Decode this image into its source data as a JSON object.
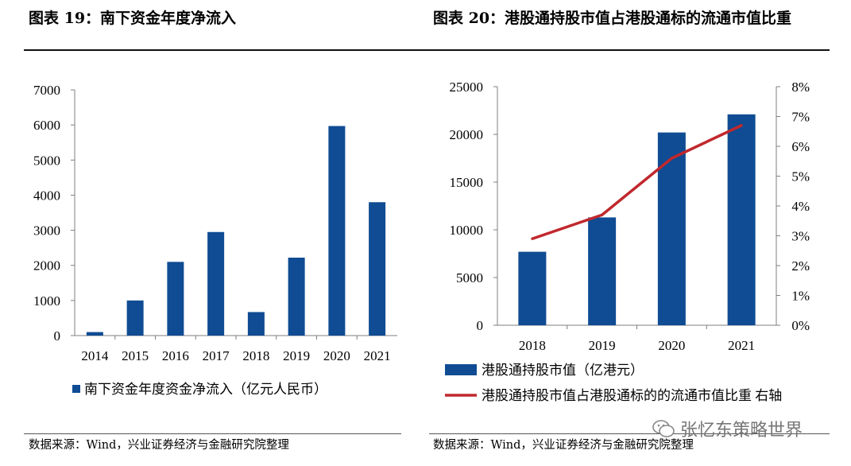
{
  "left_panel": {
    "title": "图表 19：南下资金年度净流入",
    "source": "数据来源：Wind，兴业证券经济与金融研究院整理"
  },
  "right_panel": {
    "title": "图表 20：港股通持股市值占港股通标的流通市值比重",
    "source": "数据来源：Wind，兴业证券经济与金融研究院整理"
  },
  "watermark": {
    "text": "张忆东策略世界"
  },
  "colors": {
    "bar": "#0F4C93",
    "line": "#C0282D",
    "axis": "#7F7F7F"
  },
  "chart_data": [
    {
      "type": "bar",
      "title": "",
      "categories": [
        "2014",
        "2015",
        "2016",
        "2017",
        "2018",
        "2019",
        "2020",
        "2021"
      ],
      "series": [
        {
          "name": "南下资金年度资金净流入（亿元人民币）",
          "values": [
            100,
            1000,
            2100,
            2950,
            670,
            2220,
            5970,
            3800
          ]
        }
      ],
      "xlabel": "",
      "ylabel": "",
      "ylim": [
        0,
        7000
      ],
      "yticks": [
        "0",
        "1000",
        "2000",
        "3000",
        "4000",
        "5000",
        "6000",
        "7000"
      ],
      "grid": false,
      "legend": "bottom"
    },
    {
      "type": "bar",
      "title": "",
      "categories": [
        "2018",
        "2019",
        "2020",
        "2021"
      ],
      "series": [
        {
          "name": "港股通持股市值（亿港元）",
          "type": "bar",
          "axis": "left",
          "values": [
            7700,
            11300,
            20200,
            22100
          ]
        },
        {
          "name": "港股通持股市值占港股通标的的流通市值比重 右轴",
          "type": "line",
          "axis": "right",
          "values": [
            2.9,
            3.7,
            5.6,
            6.7
          ]
        }
      ],
      "ylim": [
        0,
        25000
      ],
      "y2lim": [
        0,
        8
      ],
      "yticks": [
        "0",
        "5000",
        "10000",
        "15000",
        "20000",
        "25000"
      ],
      "y2ticks": [
        "0%",
        "1%",
        "2%",
        "3%",
        "4%",
        "5%",
        "6%",
        "7%",
        "8%"
      ],
      "grid": false,
      "legend": "bottom"
    }
  ]
}
